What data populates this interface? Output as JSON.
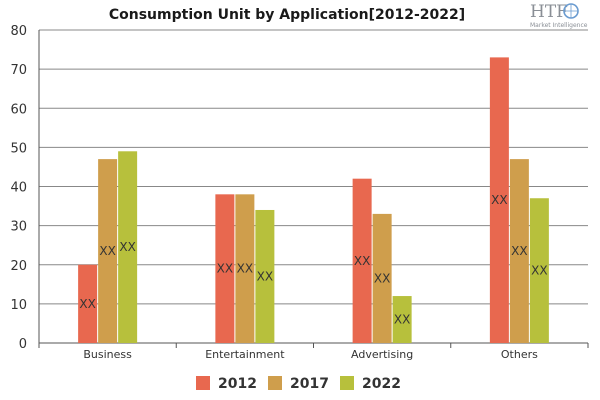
{
  "colors": {
    "grid": "#888888",
    "axis": "#555555"
  },
  "logo": {
    "name": "HTF",
    "tagline": "Market Intelligence"
  },
  "chart_data": {
    "type": "bar",
    "title": "Consumption Unit by  Application[2012-2022]",
    "xlabel": "",
    "ylabel": "",
    "categories": [
      "Business",
      "Entertainment",
      "Advertising",
      "Others"
    ],
    "ylim": [
      0,
      80
    ],
    "yticks": [
      0,
      10,
      20,
      30,
      40,
      50,
      60,
      70,
      80
    ],
    "grid": true,
    "legend_position": "bottom",
    "data_label_text": "XX",
    "series": [
      {
        "name": "2012",
        "color": "#e8684f",
        "values": [
          20,
          38,
          42,
          73
        ]
      },
      {
        "name": "2017",
        "color": "#cf9e4c",
        "values": [
          47,
          38,
          33,
          47
        ]
      },
      {
        "name": "2022",
        "color": "#b7c03c",
        "values": [
          49,
          34,
          12,
          37
        ]
      }
    ]
  }
}
